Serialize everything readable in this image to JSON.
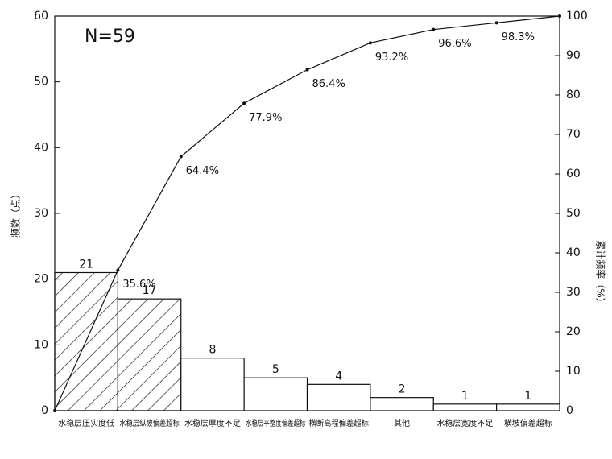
{
  "chart_data": {
    "type": "pareto",
    "annotation": "N=59",
    "ylabel": "频数（点）",
    "y2label": "累计频率（%）",
    "categories": [
      "水稳层压实度低",
      "水稳层纵坡偏差超标",
      "水稳层厚度不足",
      "水稳层平整度偏差超标",
      "横断高程偏差超标",
      "其他",
      "水稳层宽度不足",
      "横坡偏差超标"
    ],
    "series": [
      {
        "type": "bar",
        "color": "#111111",
        "hatched_bars": 2,
        "values": [
          21,
          17,
          8,
          5,
          4,
          2,
          1,
          1
        ]
      },
      {
        "type": "line",
        "axis": "y2",
        "color": "#111111",
        "x": [
          0,
          1,
          2,
          3,
          4,
          5,
          6,
          7,
          8
        ],
        "values": [
          0,
          35.6,
          64.4,
          77.9,
          86.4,
          93.2,
          96.6,
          98.3,
          100
        ],
        "value_labels": [
          null,
          "35.6%",
          "64.4%",
          "77.9%",
          "86.4%",
          "93.2%",
          "96.6%",
          "98.3%",
          null
        ]
      }
    ],
    "xlim": [
      0,
      8
    ],
    "ylim": [
      0,
      60
    ],
    "yticks": [
      0,
      10,
      20,
      30,
      40,
      50,
      60
    ],
    "y2lim": [
      0,
      100
    ],
    "y2ticks": [
      0,
      10,
      20,
      30,
      40,
      50,
      60,
      70,
      80,
      90,
      100
    ]
  }
}
